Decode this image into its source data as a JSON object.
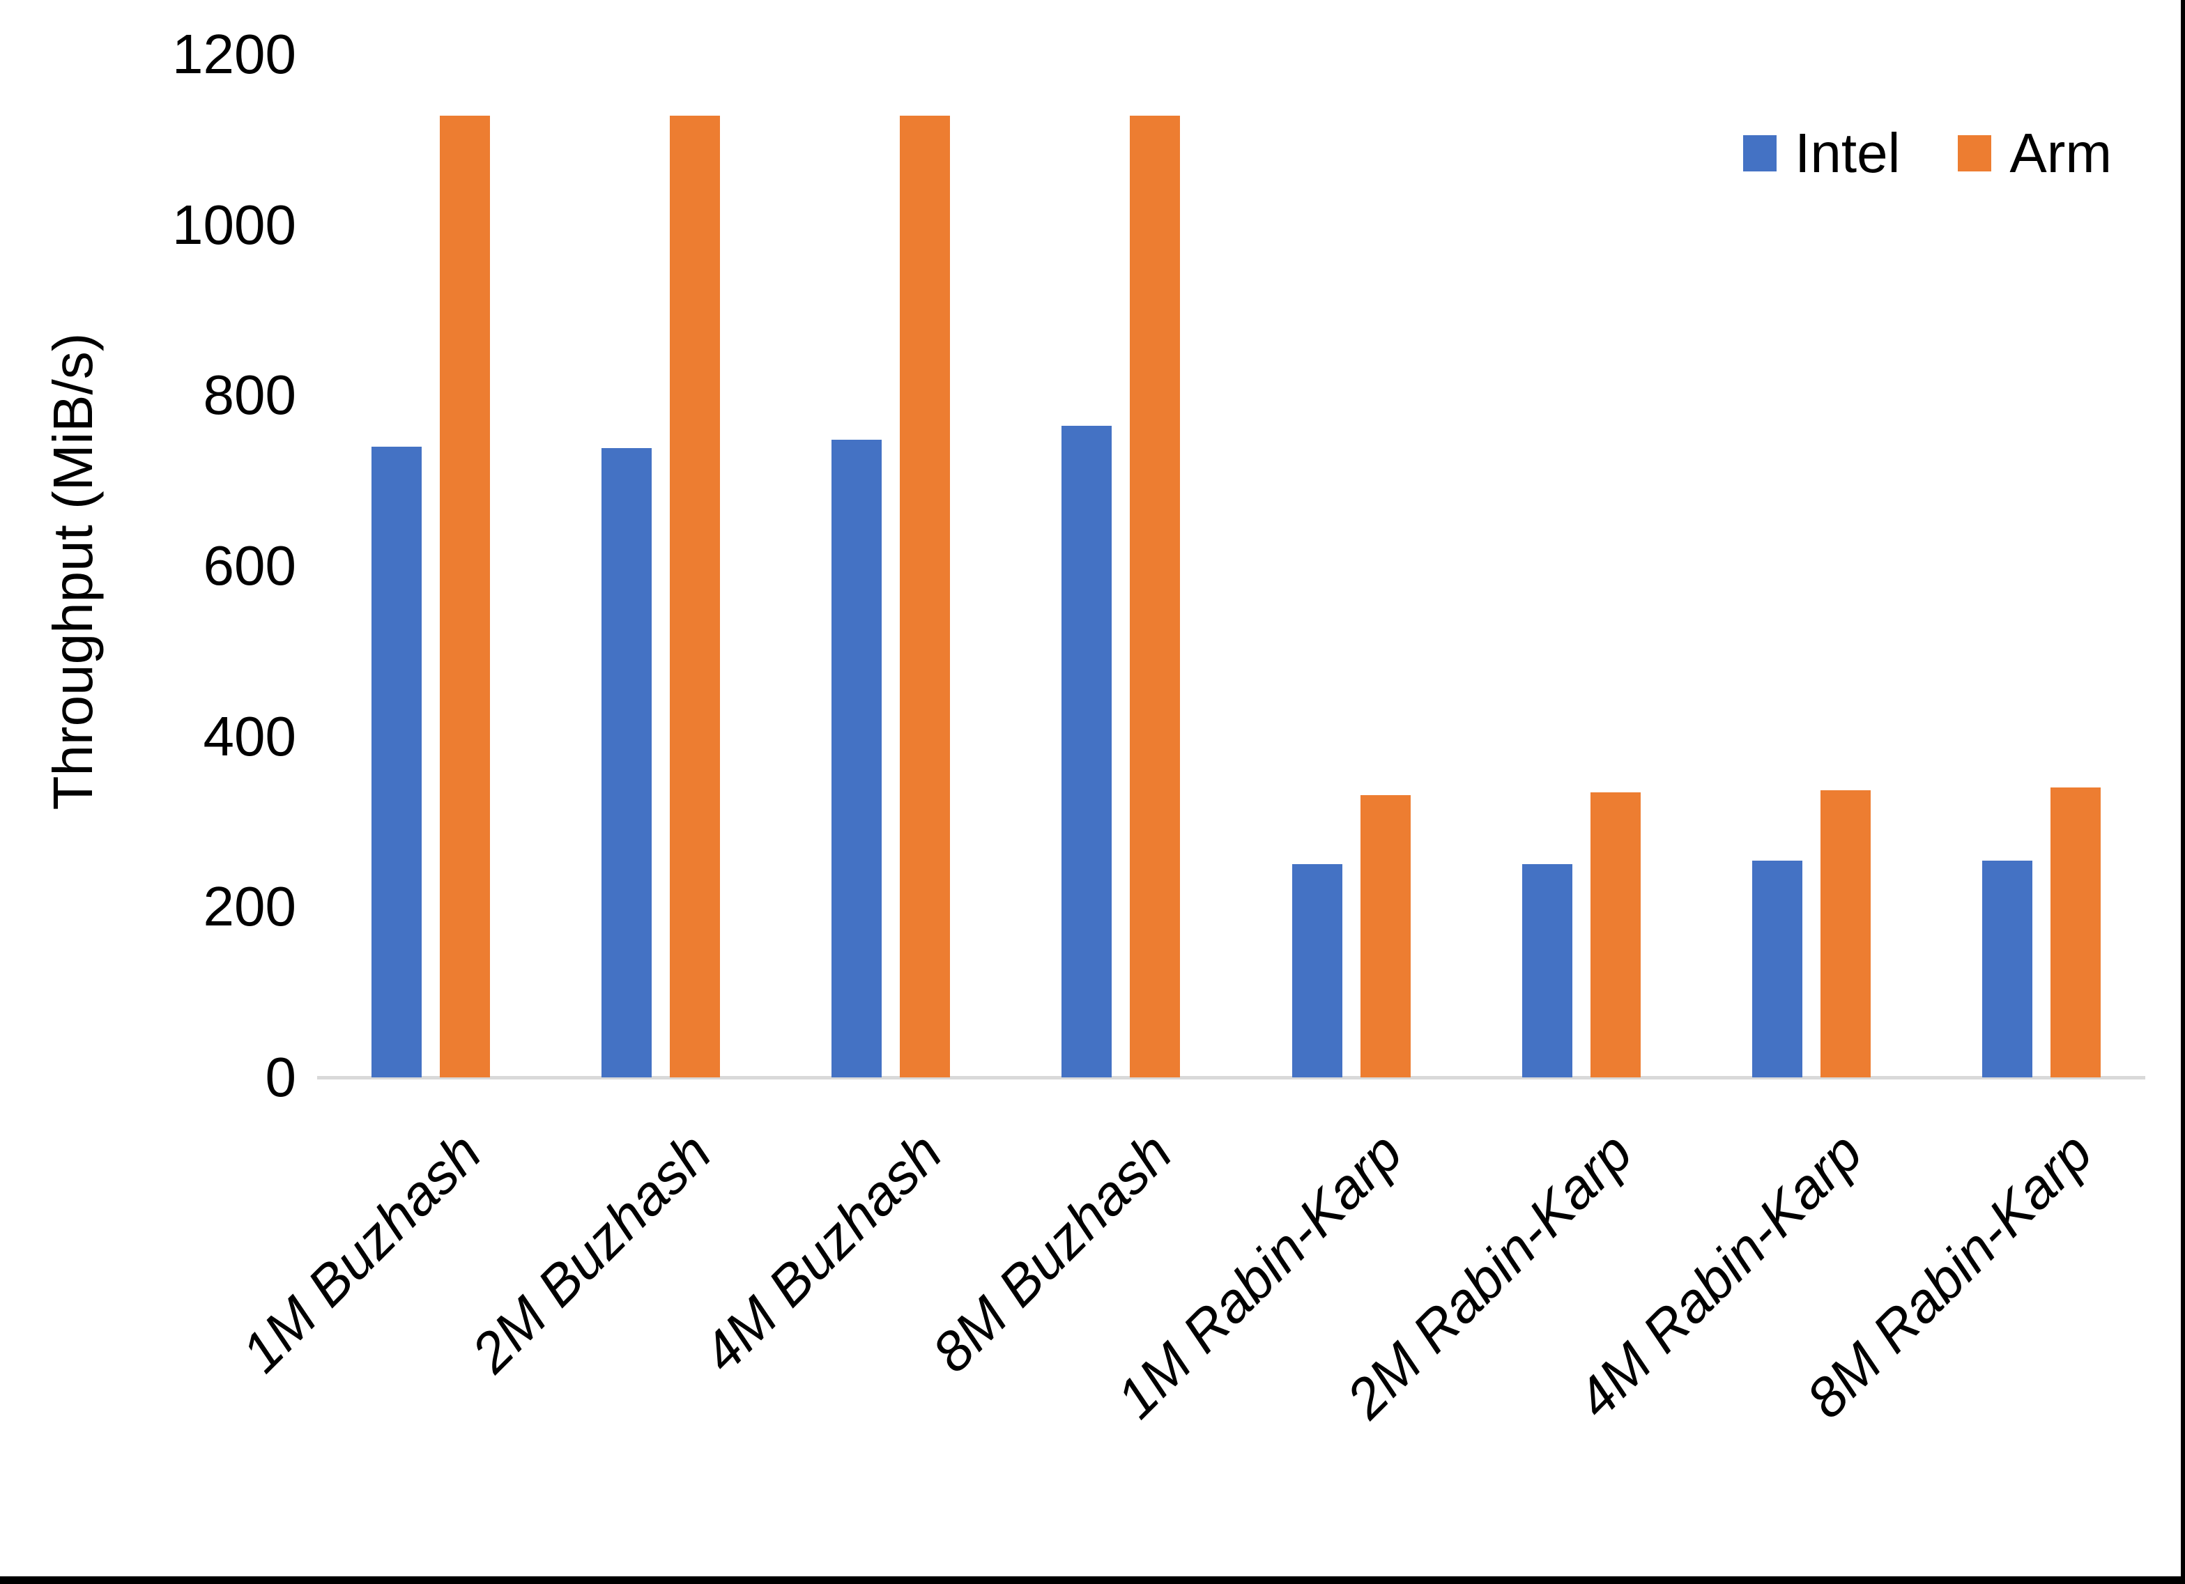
{
  "chart_data": {
    "type": "bar",
    "title": "",
    "categories": [
      "1M Buzhash",
      "2M Buzhash",
      "4M Buzhash",
      "8M Buzhash",
      "1M Rabin-Karp",
      "2M Rabin-Karp",
      "4M Rabin-Karp",
      "8M Rabin-Karp"
    ],
    "series": [
      {
        "name": "Intel",
        "color": "#4472C4",
        "values": [
          740,
          738,
          748,
          764,
          250,
          250,
          254,
          254
        ]
      },
      {
        "name": "Arm",
        "color": "#ED7D31",
        "values": [
          1128,
          1128,
          1128,
          1128,
          331,
          334,
          337,
          340
        ]
      }
    ],
    "xlabel": "",
    "ylabel": "Throughput (MiB/s)",
    "ylim": [
      0,
      1200
    ],
    "yticks": [
      0,
      200,
      400,
      600,
      800,
      1000,
      1200
    ],
    "grid": false,
    "legend_position": "top-right",
    "axis_line_color": "#d9d9d9",
    "text_color": "#000000"
  }
}
